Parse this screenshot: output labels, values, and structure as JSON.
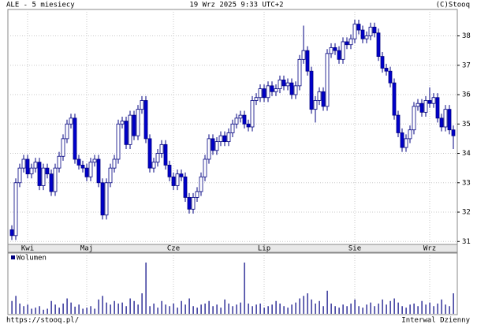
{
  "chart_data": {
    "type": "candlestick",
    "title": "ALE - 5 miesiecy",
    "timestamp": "19 Wrz 2025 9:33 UTC+2",
    "source": "(C)Stooq",
    "footer_left": "https://stooq.pl/",
    "footer_right": "Interwal Dzienny",
    "up_color": "#ffffff",
    "down_color": "#0000cc",
    "line_color": "#000080",
    "grid": true,
    "ylim": [
      30.9,
      38.9
    ],
    "yticks": [
      31,
      32,
      33,
      34,
      35,
      36,
      37,
      38
    ],
    "xticks": [
      {
        "value": 4,
        "label": "Kwi"
      },
      {
        "value": 19,
        "label": "Maj"
      },
      {
        "value": 41,
        "label": "Cze"
      },
      {
        "value": 64,
        "label": "Lip"
      },
      {
        "value": 87,
        "label": "Sie"
      },
      {
        "value": 106,
        "label": "Wrz"
      }
    ],
    "candles": [
      [
        31.4,
        31.55,
        31.05,
        31.2
      ],
      [
        31.2,
        33.15,
        31.05,
        33.0
      ],
      [
        33.0,
        33.65,
        32.85,
        33.5
      ],
      [
        33.5,
        33.95,
        33.35,
        33.8
      ],
      [
        33.8,
        33.95,
        33.15,
        33.3
      ],
      [
        33.3,
        33.65,
        33.15,
        33.5
      ],
      [
        33.5,
        33.85,
        33.35,
        33.7
      ],
      [
        33.7,
        33.85,
        32.75,
        32.9
      ],
      [
        32.9,
        33.65,
        32.75,
        33.5
      ],
      [
        33.5,
        33.65,
        33.15,
        33.3
      ],
      [
        33.3,
        33.45,
        32.55,
        32.7
      ],
      [
        32.7,
        33.65,
        32.55,
        33.5
      ],
      [
        33.5,
        34.05,
        33.35,
        33.9
      ],
      [
        33.9,
        34.65,
        33.75,
        34.5
      ],
      [
        34.5,
        35.15,
        34.35,
        35.0
      ],
      [
        35.0,
        35.35,
        34.85,
        35.2
      ],
      [
        35.2,
        35.35,
        33.65,
        33.8
      ],
      [
        33.8,
        33.95,
        33.45,
        33.6
      ],
      [
        33.6,
        33.75,
        33.35,
        33.5
      ],
      [
        33.5,
        33.65,
        33.05,
        33.2
      ],
      [
        33.2,
        33.85,
        33.05,
        33.7
      ],
      [
        33.7,
        33.95,
        33.55,
        33.8
      ],
      [
        33.8,
        33.95,
        32.85,
        33.0
      ],
      [
        33.0,
        33.15,
        31.75,
        31.9
      ],
      [
        31.9,
        33.15,
        31.75,
        33.0
      ],
      [
        33.0,
        33.65,
        32.85,
        33.5
      ],
      [
        33.5,
        33.95,
        33.35,
        33.8
      ],
      [
        33.8,
        35.15,
        33.65,
        35.0
      ],
      [
        35.0,
        35.25,
        34.85,
        35.1
      ],
      [
        35.1,
        35.25,
        34.15,
        34.3
      ],
      [
        34.3,
        35.45,
        34.15,
        35.3
      ],
      [
        35.3,
        35.45,
        34.45,
        34.6
      ],
      [
        34.6,
        35.65,
        34.45,
        35.5
      ],
      [
        35.5,
        35.95,
        35.35,
        35.8
      ],
      [
        35.8,
        35.95,
        34.35,
        34.5
      ],
      [
        34.5,
        34.65,
        33.35,
        33.5
      ],
      [
        33.5,
        33.85,
        33.35,
        33.7
      ],
      [
        33.7,
        34.15,
        33.55,
        34.0
      ],
      [
        34.0,
        34.45,
        33.85,
        34.3
      ],
      [
        34.3,
        34.45,
        33.45,
        33.6
      ],
      [
        33.6,
        33.75,
        33.05,
        33.2
      ],
      [
        33.2,
        33.35,
        32.75,
        32.9
      ],
      [
        32.9,
        33.45,
        32.75,
        33.3
      ],
      [
        33.3,
        33.45,
        33.05,
        33.2
      ],
      [
        33.2,
        33.35,
        32.35,
        32.5
      ],
      [
        32.5,
        32.65,
        31.95,
        32.1
      ],
      [
        32.1,
        32.65,
        31.95,
        32.5
      ],
      [
        32.5,
        32.85,
        32.35,
        32.7
      ],
      [
        32.7,
        33.35,
        32.55,
        33.2
      ],
      [
        33.2,
        33.95,
        33.05,
        33.8
      ],
      [
        33.8,
        34.65,
        33.65,
        34.5
      ],
      [
        34.5,
        34.65,
        33.95,
        34.1
      ],
      [
        34.1,
        34.55,
        33.95,
        34.4
      ],
      [
        34.4,
        34.75,
        34.25,
        34.6
      ],
      [
        34.6,
        34.75,
        34.25,
        34.4
      ],
      [
        34.4,
        34.85,
        34.25,
        34.7
      ],
      [
        34.7,
        35.15,
        34.55,
        35.0
      ],
      [
        35.0,
        35.35,
        34.85,
        35.2
      ],
      [
        35.2,
        35.45,
        35.05,
        35.3
      ],
      [
        35.3,
        35.45,
        34.85,
        35.0
      ],
      [
        35.0,
        35.15,
        34.75,
        34.9
      ],
      [
        34.9,
        35.95,
        34.75,
        35.8
      ],
      [
        35.8,
        36.05,
        35.65,
        35.9
      ],
      [
        35.9,
        36.35,
        35.75,
        36.2
      ],
      [
        36.2,
        36.35,
        35.75,
        35.9
      ],
      [
        35.9,
        36.45,
        35.75,
        36.3
      ],
      [
        36.3,
        36.45,
        35.95,
        36.1
      ],
      [
        36.1,
        36.35,
        35.95,
        36.2
      ],
      [
        36.2,
        36.65,
        36.05,
        36.5
      ],
      [
        36.5,
        36.65,
        36.15,
        36.3
      ],
      [
        36.3,
        36.55,
        36.15,
        36.4
      ],
      [
        36.4,
        36.55,
        35.85,
        36.0
      ],
      [
        36.0,
        36.45,
        35.85,
        36.3
      ],
      [
        36.3,
        37.35,
        36.15,
        37.2
      ],
      [
        37.2,
        38.35,
        37.05,
        37.5
      ],
      [
        37.5,
        37.65,
        36.65,
        36.8
      ],
      [
        36.8,
        36.95,
        35.35,
        35.5
      ],
      [
        35.5,
        35.95,
        35.05,
        35.8
      ],
      [
        35.8,
        36.25,
        35.65,
        36.1
      ],
      [
        36.1,
        36.25,
        35.45,
        35.6
      ],
      [
        35.6,
        37.55,
        35.45,
        37.4
      ],
      [
        37.4,
        37.75,
        37.25,
        37.6
      ],
      [
        37.6,
        37.75,
        37.35,
        37.5
      ],
      [
        37.5,
        37.65,
        37.05,
        37.2
      ],
      [
        37.2,
        37.95,
        37.05,
        37.8
      ],
      [
        37.8,
        37.95,
        37.55,
        37.7
      ],
      [
        37.7,
        38.05,
        37.55,
        37.9
      ],
      [
        37.9,
        38.55,
        37.75,
        38.4
      ],
      [
        38.4,
        38.55,
        38.05,
        38.2
      ],
      [
        38.2,
        38.35,
        37.75,
        37.9
      ],
      [
        37.9,
        38.15,
        37.75,
        38.0
      ],
      [
        38.0,
        38.45,
        37.85,
        38.3
      ],
      [
        38.3,
        38.45,
        37.95,
        38.1
      ],
      [
        38.1,
        38.25,
        37.15,
        37.3
      ],
      [
        37.3,
        37.45,
        36.75,
        36.9
      ],
      [
        36.9,
        37.05,
        36.65,
        36.8
      ],
      [
        36.8,
        36.95,
        36.25,
        36.4
      ],
      [
        36.4,
        36.55,
        35.15,
        35.3
      ],
      [
        35.3,
        35.45,
        34.55,
        34.7
      ],
      [
        34.7,
        34.85,
        34.05,
        34.2
      ],
      [
        34.2,
        34.65,
        34.05,
        34.5
      ],
      [
        34.5,
        34.95,
        34.35,
        34.8
      ],
      [
        34.8,
        35.75,
        34.65,
        35.6
      ],
      [
        35.6,
        35.85,
        35.45,
        35.7
      ],
      [
        35.7,
        35.85,
        35.25,
        35.4
      ],
      [
        35.4,
        35.95,
        35.25,
        35.8
      ],
      [
        35.8,
        36.25,
        35.55,
        35.7
      ],
      [
        35.7,
        36.05,
        35.55,
        35.9
      ],
      [
        35.9,
        36.05,
        35.05,
        35.2
      ],
      [
        35.2,
        35.35,
        34.75,
        34.9
      ],
      [
        34.9,
        35.65,
        34.75,
        35.5
      ],
      [
        35.5,
        35.65,
        34.65,
        34.8
      ],
      [
        34.8,
        34.95,
        34.15,
        34.6
      ]
    ],
    "volume": {
      "name": "Wolumen",
      "ylim": [
        0,
        100
      ],
      "values": [
        25,
        35,
        20,
        15,
        18,
        10,
        12,
        15,
        8,
        10,
        25,
        18,
        12,
        20,
        30,
        22,
        14,
        18,
        10,
        12,
        15,
        10,
        28,
        35,
        22,
        18,
        25,
        20,
        22,
        15,
        30,
        25,
        18,
        40,
        100,
        15,
        20,
        12,
        25,
        18,
        15,
        20,
        12,
        25,
        18,
        30,
        15,
        12,
        18,
        20,
        25,
        15,
        18,
        12,
        28,
        20,
        15,
        18,
        22,
        100,
        20,
        15,
        18,
        20,
        12,
        15,
        18,
        25,
        20,
        15,
        12,
        18,
        22,
        30,
        35,
        40,
        28,
        20,
        25,
        15,
        45,
        20,
        15,
        12,
        18,
        15,
        20,
        28,
        15,
        12,
        18,
        22,
        15,
        20,
        28,
        18,
        25,
        30,
        22,
        15,
        12,
        18,
        20,
        15,
        25,
        18,
        22,
        15,
        20,
        28,
        18,
        15,
        40
      ]
    }
  }
}
